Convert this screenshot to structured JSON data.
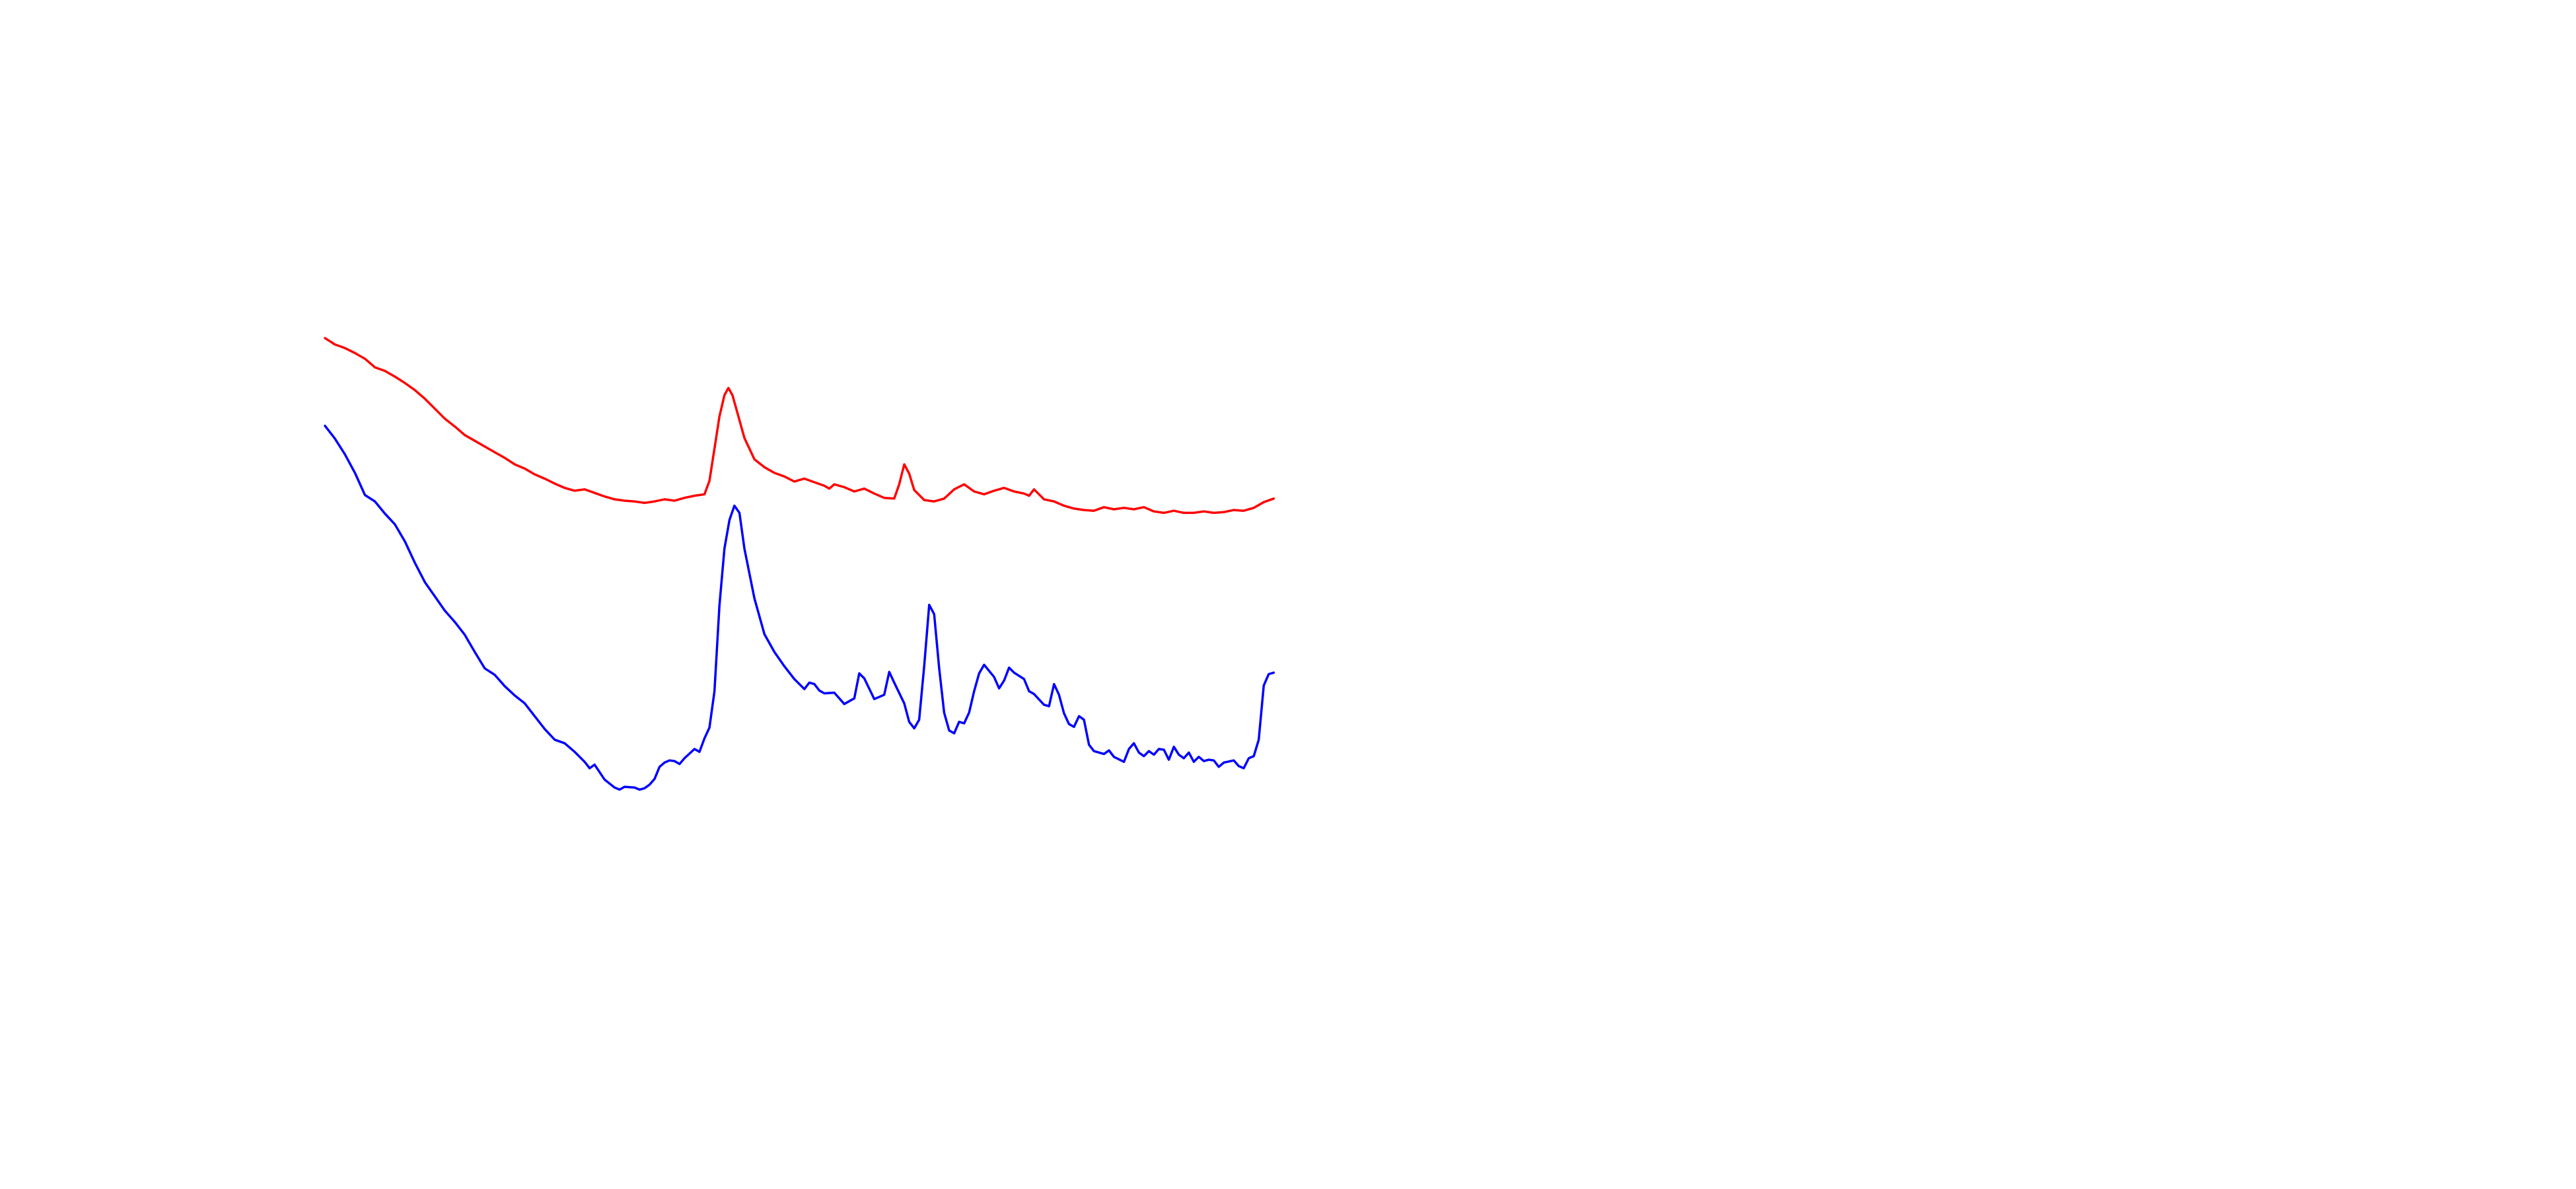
{
  "chart_data": {
    "type": "line",
    "title": "",
    "xlabel": "",
    "ylabel": "",
    "axes_visible": false,
    "grid": false,
    "legend": "none",
    "xlim": [
      0,
      100
    ],
    "ylim": [
      0,
      100
    ],
    "series": [
      {
        "color": "#ff0000",
        "points": [
          [
            0,
            91.5
          ],
          [
            1,
            90.6
          ],
          [
            2,
            90.1
          ],
          [
            3,
            89.4
          ],
          [
            4,
            88.6
          ],
          [
            5,
            87.4
          ],
          [
            6,
            86.9
          ],
          [
            7,
            86.1
          ],
          [
            8,
            85.2
          ],
          [
            9,
            84.2
          ],
          [
            10,
            83.0
          ],
          [
            11,
            81.6
          ],
          [
            12,
            80.2
          ],
          [
            13,
            79.1
          ],
          [
            14,
            77.9
          ],
          [
            15,
            77.1
          ],
          [
            16,
            76.3
          ],
          [
            17,
            75.5
          ],
          [
            18,
            74.7
          ],
          [
            19,
            73.8
          ],
          [
            20,
            73.2
          ],
          [
            21,
            72.4
          ],
          [
            22,
            71.8
          ],
          [
            23,
            71.1
          ],
          [
            24,
            70.5
          ],
          [
            25,
            70.1
          ],
          [
            26,
            70.3
          ],
          [
            27,
            69.8
          ],
          [
            28,
            69.3
          ],
          [
            29,
            68.9
          ],
          [
            30,
            68.7
          ],
          [
            31,
            68.6
          ],
          [
            32,
            68.4
          ],
          [
            33,
            68.6
          ],
          [
            34,
            68.9
          ],
          [
            35,
            68.7
          ],
          [
            36,
            69.1
          ],
          [
            37,
            69.4
          ],
          [
            38,
            69.6
          ],
          [
            38.5,
            71.5
          ],
          [
            39,
            76.0
          ],
          [
            39.5,
            80.5
          ],
          [
            40,
            83.5
          ],
          [
            40.4,
            84.5
          ],
          [
            40.8,
            83.5
          ],
          [
            41.3,
            81.0
          ],
          [
            42,
            77.5
          ],
          [
            43,
            74.5
          ],
          [
            44,
            73.4
          ],
          [
            45,
            72.6
          ],
          [
            46,
            72.1
          ],
          [
            47,
            71.4
          ],
          [
            48,
            71.8
          ],
          [
            49,
            71.3
          ],
          [
            50,
            70.8
          ],
          [
            50.5,
            70.4
          ],
          [
            51,
            71.0
          ],
          [
            52,
            70.6
          ],
          [
            53,
            70.0
          ],
          [
            54,
            70.4
          ],
          [
            55,
            69.7
          ],
          [
            56,
            69.1
          ],
          [
            57,
            69.0
          ],
          [
            57.5,
            71.0
          ],
          [
            58,
            73.8
          ],
          [
            58.5,
            72.5
          ],
          [
            59,
            70.2
          ],
          [
            60,
            68.8
          ],
          [
            61,
            68.6
          ],
          [
            62,
            69.0
          ],
          [
            63,
            70.3
          ],
          [
            64,
            71.0
          ],
          [
            65,
            70.0
          ],
          [
            66,
            69.6
          ],
          [
            67,
            70.1
          ],
          [
            68,
            70.5
          ],
          [
            69,
            70.0
          ],
          [
            70,
            69.7
          ],
          [
            70.5,
            69.4
          ],
          [
            71,
            70.3
          ],
          [
            72,
            68.9
          ],
          [
            73,
            68.6
          ],
          [
            74,
            68.0
          ],
          [
            75,
            67.6
          ],
          [
            76,
            67.4
          ],
          [
            77,
            67.3
          ],
          [
            78,
            67.8
          ],
          [
            79,
            67.5
          ],
          [
            80,
            67.7
          ],
          [
            81,
            67.5
          ],
          [
            82,
            67.8
          ],
          [
            83,
            67.2
          ],
          [
            84,
            67.0
          ],
          [
            85,
            67.3
          ],
          [
            86,
            67.0
          ],
          [
            87,
            67.0
          ],
          [
            88,
            67.2
          ],
          [
            89,
            67.0
          ],
          [
            90,
            67.1
          ],
          [
            91,
            67.4
          ],
          [
            92,
            67.3
          ],
          [
            93,
            67.7
          ],
          [
            94,
            68.5
          ],
          [
            95,
            69.0
          ]
        ]
      },
      {
        "color": "#0000ff",
        "points": [
          [
            0,
            79.2
          ],
          [
            1,
            77.4
          ],
          [
            2,
            75.2
          ],
          [
            3,
            72.6
          ],
          [
            4,
            69.5
          ],
          [
            5,
            68.6
          ],
          [
            6,
            66.9
          ],
          [
            7,
            65.4
          ],
          [
            8,
            63.0
          ],
          [
            9,
            60.0
          ],
          [
            10,
            57.3
          ],
          [
            11,
            55.3
          ],
          [
            12,
            53.3
          ],
          [
            13,
            51.7
          ],
          [
            14,
            49.9
          ],
          [
            15,
            47.5
          ],
          [
            16,
            45.2
          ],
          [
            17,
            44.3
          ],
          [
            18,
            42.7
          ],
          [
            19,
            41.4
          ],
          [
            20,
            40.3
          ],
          [
            21,
            38.5
          ],
          [
            22,
            36.7
          ],
          [
            23,
            35.2
          ],
          [
            24,
            34.7
          ],
          [
            25,
            33.5
          ],
          [
            26,
            32.1
          ],
          [
            26.5,
            31.2
          ],
          [
            27,
            31.7
          ],
          [
            28,
            29.6
          ],
          [
            29,
            28.5
          ],
          [
            29.5,
            28.2
          ],
          [
            30,
            28.6
          ],
          [
            31,
            28.5
          ],
          [
            31.5,
            28.2
          ],
          [
            32,
            28.4
          ],
          [
            32.5,
            28.9
          ],
          [
            33,
            29.7
          ],
          [
            33.5,
            31.4
          ],
          [
            34,
            32.0
          ],
          [
            34.5,
            32.3
          ],
          [
            35,
            32.2
          ],
          [
            35.5,
            31.8
          ],
          [
            36,
            32.6
          ],
          [
            37,
            33.9
          ],
          [
            37.5,
            33.5
          ],
          [
            38,
            35.4
          ],
          [
            38.5,
            36.9
          ],
          [
            39,
            42.0
          ],
          [
            39.5,
            54.0
          ],
          [
            40,
            62.0
          ],
          [
            40.5,
            66.0
          ],
          [
            41,
            68.0
          ],
          [
            41.5,
            67.0
          ],
          [
            42,
            62.0
          ],
          [
            43,
            55.0
          ],
          [
            44,
            50.0
          ],
          [
            45,
            47.5
          ],
          [
            46,
            45.5
          ],
          [
            47,
            43.7
          ],
          [
            48,
            42.3
          ],
          [
            48.5,
            43.2
          ],
          [
            49,
            43.0
          ],
          [
            49.5,
            42.1
          ],
          [
            50,
            41.7
          ],
          [
            51,
            41.8
          ],
          [
            52,
            40.2
          ],
          [
            53,
            41.0
          ],
          [
            53.5,
            44.5
          ],
          [
            54,
            43.8
          ],
          [
            55,
            40.9
          ],
          [
            56,
            41.5
          ],
          [
            56.5,
            44.7
          ],
          [
            57,
            43.2
          ],
          [
            58,
            40.3
          ],
          [
            58.5,
            37.7
          ],
          [
            59,
            36.8
          ],
          [
            59.5,
            38.0
          ],
          [
            60,
            45.5
          ],
          [
            60.5,
            54.1
          ],
          [
            61,
            52.8
          ],
          [
            61.5,
            45.2
          ],
          [
            62,
            39.0
          ],
          [
            62.5,
            36.5
          ],
          [
            63,
            36.1
          ],
          [
            63.5,
            37.7
          ],
          [
            64,
            37.5
          ],
          [
            64.5,
            39.0
          ],
          [
            65,
            42.0
          ],
          [
            65.5,
            44.5
          ],
          [
            66,
            45.7
          ],
          [
            67,
            44.0
          ],
          [
            67.5,
            42.4
          ],
          [
            68,
            43.5
          ],
          [
            68.5,
            45.3
          ],
          [
            69,
            44.6
          ],
          [
            70,
            43.7
          ],
          [
            70.5,
            42.0
          ],
          [
            71,
            41.6
          ],
          [
            72,
            40.1
          ],
          [
            72.5,
            39.9
          ],
          [
            73,
            43.0
          ],
          [
            73.5,
            41.5
          ],
          [
            74,
            38.9
          ],
          [
            74.5,
            37.4
          ],
          [
            75,
            37.0
          ],
          [
            75.5,
            38.5
          ],
          [
            76,
            38.0
          ],
          [
            76.5,
            34.5
          ],
          [
            77,
            33.6
          ],
          [
            78,
            33.2
          ],
          [
            78.5,
            33.7
          ],
          [
            79,
            32.8
          ],
          [
            80,
            32.1
          ],
          [
            80.5,
            33.9
          ],
          [
            81,
            34.7
          ],
          [
            81.5,
            33.4
          ],
          [
            82,
            32.9
          ],
          [
            82.5,
            33.6
          ],
          [
            83,
            33.1
          ],
          [
            83.5,
            33.9
          ],
          [
            84,
            33.8
          ],
          [
            84.5,
            32.4
          ],
          [
            85,
            34.2
          ],
          [
            85.5,
            33.1
          ],
          [
            86,
            32.6
          ],
          [
            86.5,
            33.4
          ],
          [
            87,
            32.1
          ],
          [
            87.5,
            32.8
          ],
          [
            88,
            32.2
          ],
          [
            88.5,
            32.4
          ],
          [
            89,
            32.3
          ],
          [
            89.5,
            31.4
          ],
          [
            90,
            32.0
          ],
          [
            91,
            32.3
          ],
          [
            91.5,
            31.5
          ],
          [
            92,
            31.2
          ],
          [
            92.5,
            32.6
          ],
          [
            93,
            32.9
          ],
          [
            93.5,
            35.2
          ],
          [
            94,
            42.8
          ],
          [
            94.5,
            44.4
          ],
          [
            95,
            44.6
          ]
        ]
      }
    ]
  }
}
